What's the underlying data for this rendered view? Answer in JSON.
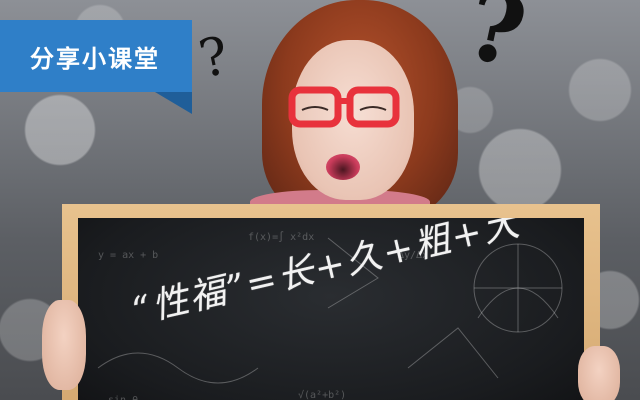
{
  "banner": {
    "label": "分享小课堂"
  },
  "chalkboard": {
    "text": "“性福”=长+久+粗+大"
  },
  "colors": {
    "banner_blue": "#2f7fc8",
    "banner_fold": "#1f5e99",
    "board_dark": "#1a1c1f",
    "frame_wood": "#e0b77f",
    "glasses_red": "#e8323c"
  },
  "decorations": {
    "question_mark_small": "question-mark-icon",
    "question_mark_large": "question-mark-icon"
  }
}
